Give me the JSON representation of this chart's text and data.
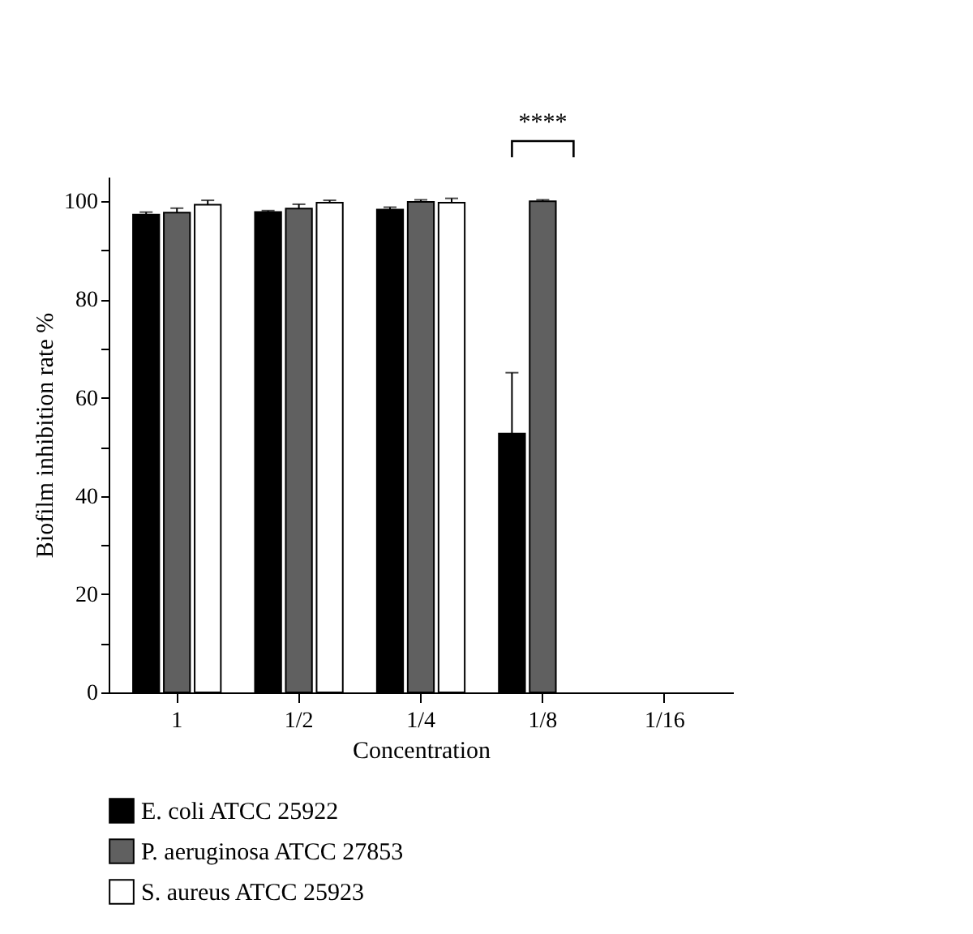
{
  "chart_data": {
    "type": "bar",
    "xlabel": "Concentration",
    "ylabel": "Biofilm inhibition rate %",
    "categories": [
      "1",
      "1/2",
      "1/4",
      "1/8",
      "1/16"
    ],
    "series": [
      {
        "name": "E. coli ATCC 25922",
        "color": "#000000",
        "values": [
          97.3,
          97.8,
          98.3,
          52.7,
          null
        ],
        "errors": [
          0.5,
          0.3,
          0.5,
          12.4,
          null
        ]
      },
      {
        "name": "P. aeruginosa ATCC 27853",
        "color": "#606060",
        "values": [
          97.7,
          98.5,
          99.9,
          100,
          null
        ],
        "errors": [
          0.9,
          0.9,
          0.4,
          0.3,
          null
        ]
      },
      {
        "name": "S. aureus ATCC 25923",
        "color": "#ffffff",
        "values": [
          99.3,
          99.7,
          99.7,
          null,
          null
        ],
        "errors": [
          0.9,
          0.5,
          0.9,
          null,
          null
        ]
      }
    ],
    "ylim": [
      0,
      105
    ],
    "yticks": [
      0,
      {
        "value": 10,
        "label": null
      },
      20,
      {
        "value": 30,
        "label": null
      },
      40,
      {
        "value": 50,
        "label": null
      },
      60,
      {
        "value": 70,
        "label": null
      },
      80,
      {
        "value": 90,
        "label": null
      },
      100
    ],
    "annotations": [
      "****"
    ],
    "legend": "bottom",
    "grid": false
  }
}
